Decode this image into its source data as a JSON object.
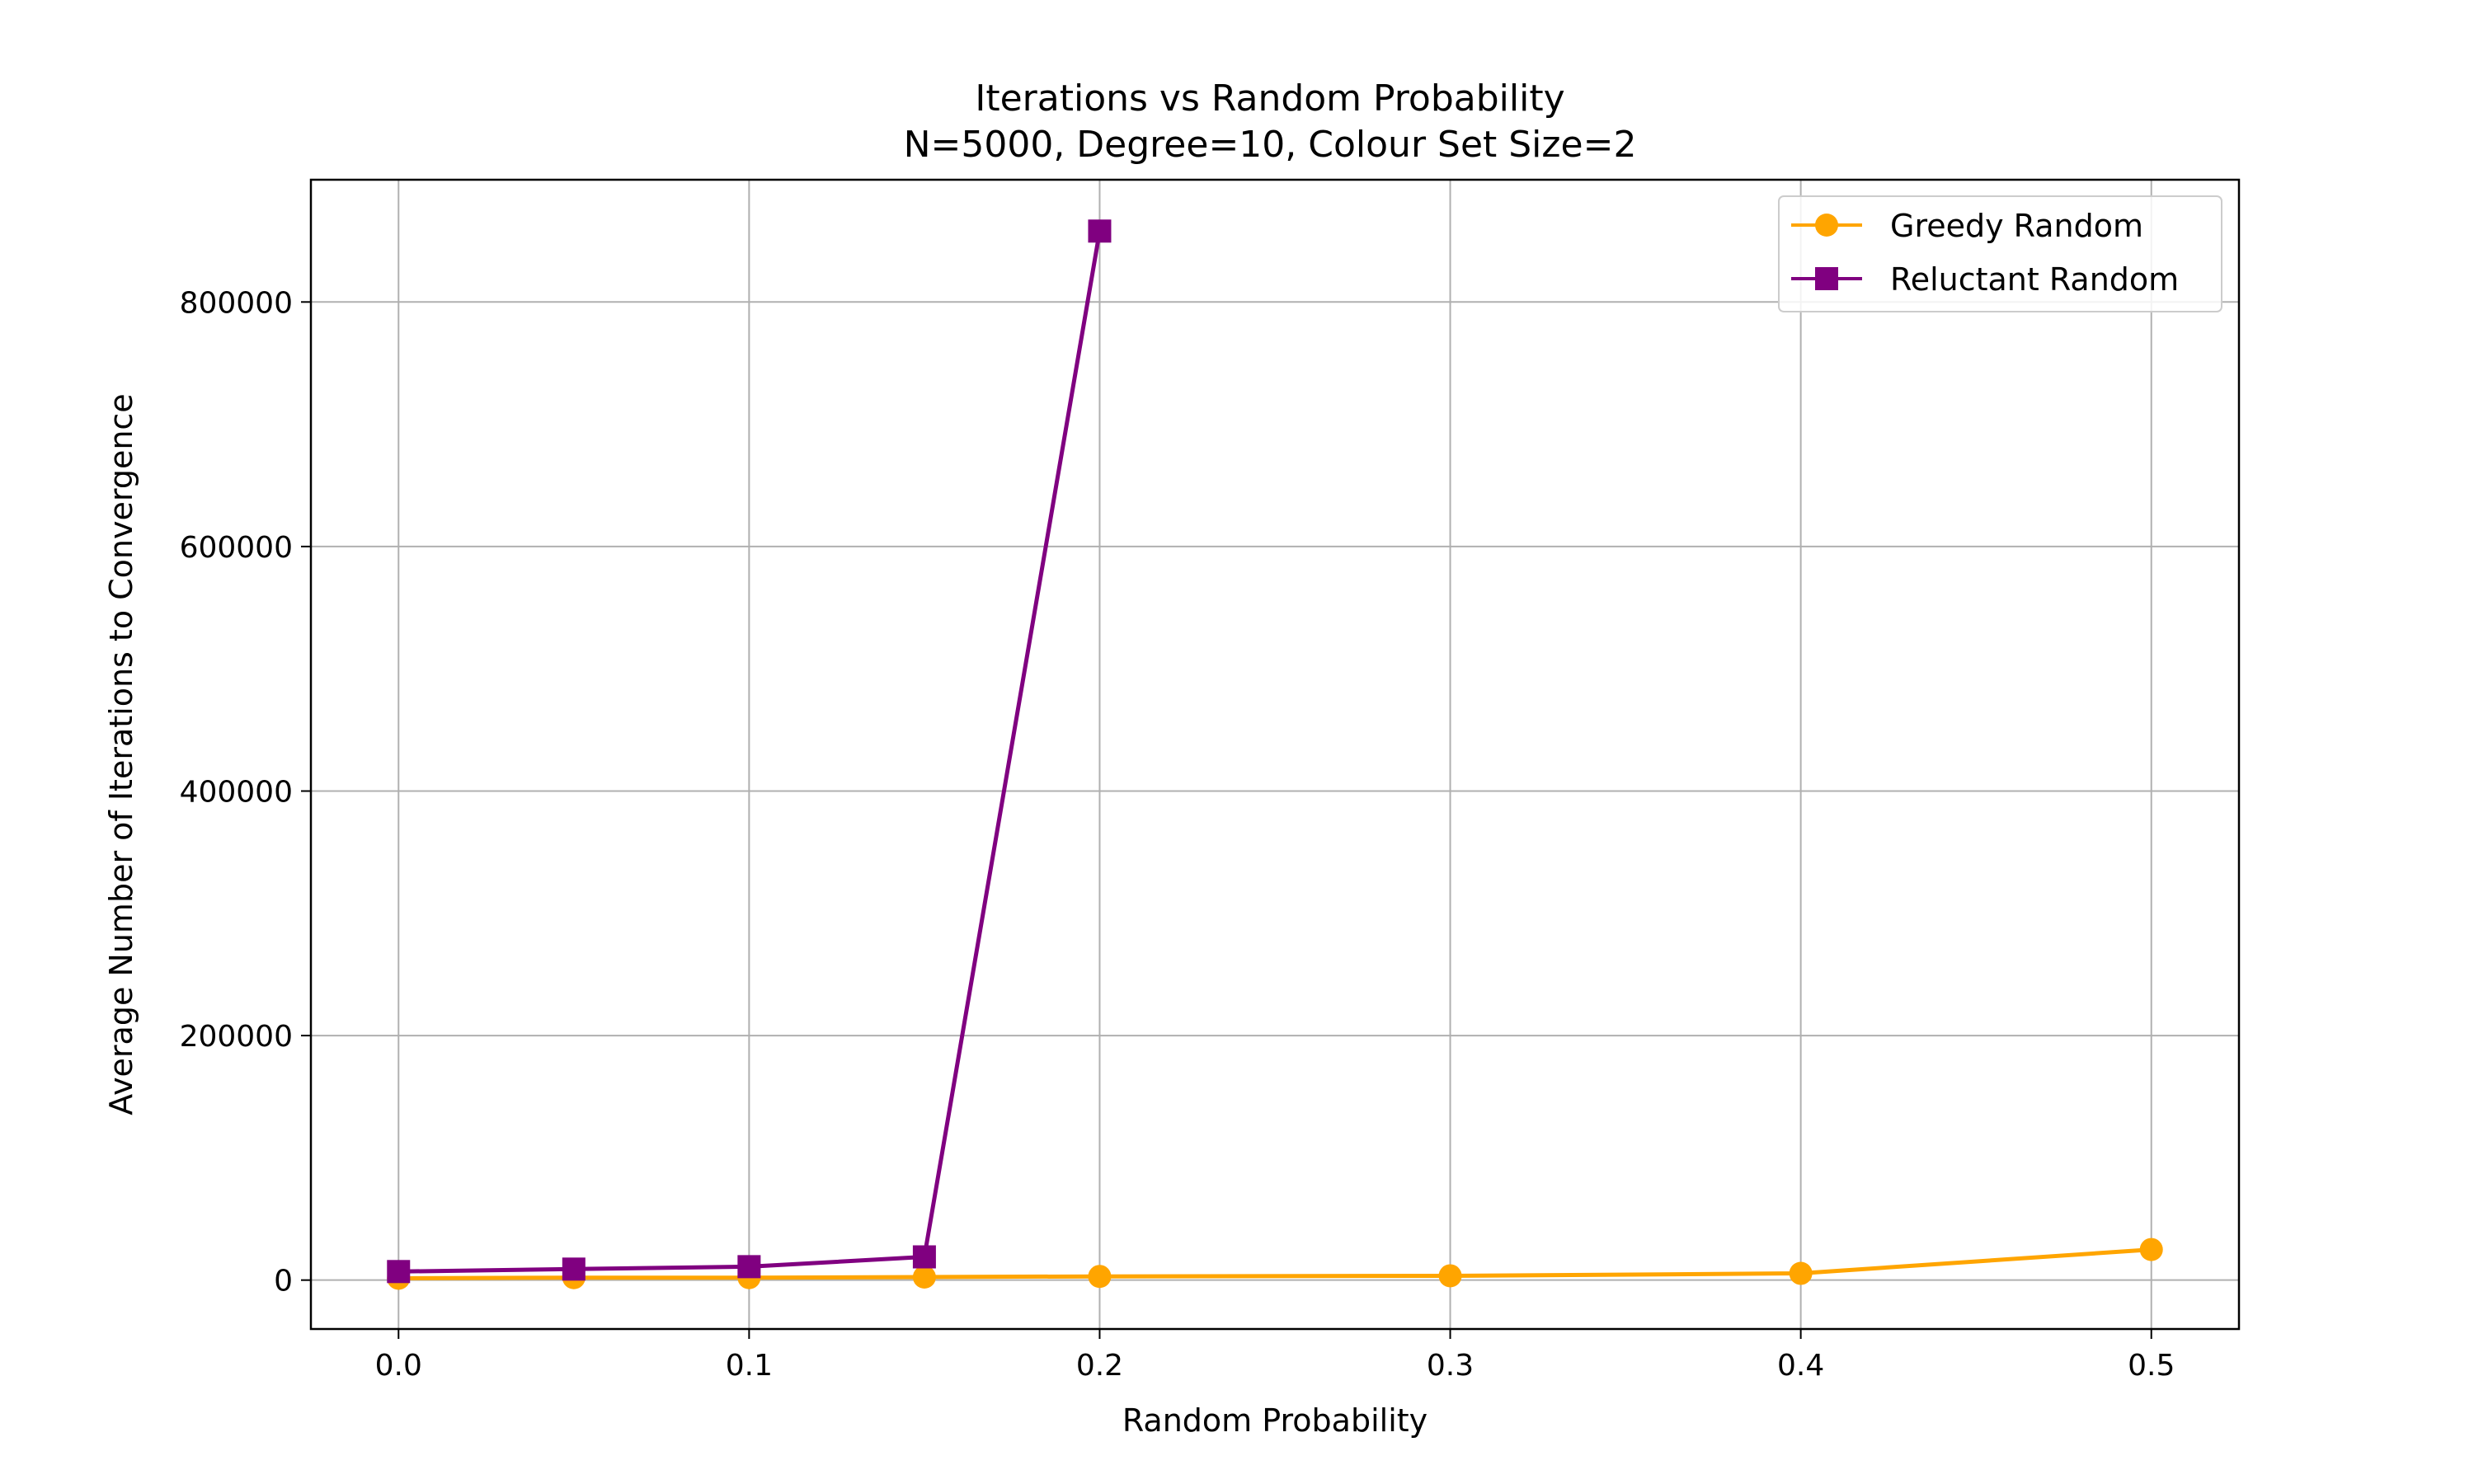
{
  "chart_data": {
    "type": "line",
    "title": "Iterations vs Random Probability",
    "subtitle": "N=5000, Degree=10, Colour Set Size=2",
    "xlabel": "Random Probability",
    "ylabel": "Average Number of Iterations to Convergence",
    "xlim": [
      -0.025,
      0.525
    ],
    "ylim": [
      -40000,
      900000
    ],
    "xticks": [
      0.0,
      0.1,
      0.2,
      0.3,
      0.4,
      0.5
    ],
    "xtick_labels": [
      "0.0",
      "0.1",
      "0.2",
      "0.3",
      "0.4",
      "0.5"
    ],
    "yticks": [
      0,
      200000,
      400000,
      600000,
      800000
    ],
    "ytick_labels": [
      "0",
      "200000",
      "400000",
      "600000",
      "800000"
    ],
    "grid": true,
    "legend_position": "top-right",
    "series": [
      {
        "name": "Greedy Random",
        "color": "#FFA500",
        "marker": "circle",
        "x": [
          0.0,
          0.05,
          0.1,
          0.15,
          0.2,
          0.3,
          0.4,
          0.5
        ],
        "y": [
          1500,
          2000,
          2000,
          2500,
          3000,
          3500,
          5500,
          25000
        ]
      },
      {
        "name": "Reluctant Random",
        "color": "#800080",
        "marker": "square",
        "x": [
          0.0,
          0.05,
          0.1,
          0.15,
          0.2
        ],
        "y": [
          7000,
          9000,
          11000,
          19000,
          858000
        ]
      }
    ]
  }
}
